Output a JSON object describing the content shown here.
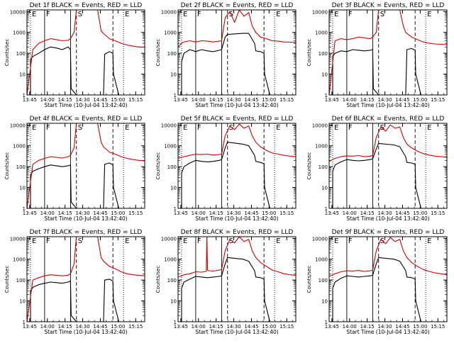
{
  "chart_data": {
    "type": "line",
    "panel_count": 9,
    "ylabel": "Counts/sec",
    "xlabel": "Start Time (10-Jul-04 13:42:40)",
    "x_tick_labels": [
      "13:45",
      "14:00",
      "14:15",
      "14:30",
      "14:45",
      "15:00",
      "15:15"
    ],
    "x_tick_minutes": [
      2.33,
      17.33,
      32.33,
      47.33,
      62.33,
      77.33,
      92.33
    ],
    "xlim_minutes": [
      0,
      100
    ],
    "y_scale": "log",
    "y_tick_labels": [
      "1",
      "10",
      "100",
      "1000",
      "10000"
    ],
    "ylim": [
      1,
      12000
    ],
    "legend_text": "BLACK = Events, RED = LLD",
    "colors": {
      "events": "#000000",
      "lld": "#d00000",
      "frame": "#000000"
    },
    "markers": [
      {
        "label": "E",
        "minute": 3,
        "style": "dotted"
      },
      {
        "label": "F",
        "minute": 15,
        "style": "solid"
      },
      {
        "label": "",
        "minute": 37,
        "style": "solid"
      },
      {
        "label": "S",
        "minute": 42,
        "style": "dashed"
      },
      {
        "label": "",
        "minute": 73,
        "style": "dashed"
      },
      {
        "label": "E",
        "minute": 82,
        "style": "dotted"
      }
    ],
    "panels": [
      {
        "title": "Det 1f BLACK = Events, RED = LLD",
        "series": [
          {
            "name": "Events",
            "x": [
              0,
              3,
              3,
              5,
              10,
              15,
              20,
              25,
              30,
              35,
              37,
              37.5,
              42,
              60,
              65,
              66,
              70,
              73,
              73.5,
              78,
              82
            ],
            "y": [
              1,
              1,
              50,
              70,
              100,
              150,
              200,
              180,
              150,
              200,
              150,
              2,
              1,
              1,
              1,
              90,
              120,
              100,
              10,
              1,
              1
            ]
          },
          {
            "name": "LLD",
            "x": [
              0,
              5,
              10,
              15,
              20,
              25,
              30,
              35,
              37,
              40,
              42,
              60,
              63,
              65,
              70,
              75,
              80,
              85,
              90,
              95,
              100
            ],
            "y": [
              1,
              150,
              300,
              400,
              500,
              450,
              400,
              420,
              500,
              1000,
              12000,
              12000,
              1200,
              900,
              500,
              400,
              300,
              250,
              220,
              200,
              200
            ]
          }
        ]
      },
      {
        "title": "Det 2f BLACK = Events, RED = LLD",
        "series": [
          {
            "name": "Events",
            "x": [
              0,
              3,
              3,
              5,
              10,
              15,
              20,
              25,
              30,
              35,
              37,
              40,
              42,
              55,
              60,
              65,
              66,
              70,
              73,
              73.5,
              78,
              82
            ],
            "y": [
              1,
              1,
              40,
              100,
              150,
              120,
              150,
              130,
              120,
              140,
              150,
              600,
              800,
              900,
              900,
              300,
              130,
              120,
              100,
              10,
              1,
              1
            ]
          },
          {
            "name": "LLD",
            "x": [
              0,
              3,
              5,
              10,
              15,
              20,
              25,
              30,
              35,
              37,
              40,
              44,
              48,
              52,
              56,
              60,
              63,
              66,
              70,
              75,
              80,
              85,
              90,
              95,
              100
            ],
            "y": [
              200,
              300,
              350,
              400,
              350,
              400,
              380,
              350,
              380,
              400,
              5000,
              10000,
              3000,
              12000,
              6000,
              9000,
              2000,
              1000,
              600,
              500,
              400,
              380,
              350,
              340,
              330
            ]
          }
        ]
      },
      {
        "title": "Det 3f BLACK = Events, RED = LLD",
        "series": [
          {
            "name": "Events",
            "x": [
              0,
              3,
              3,
              5,
              10,
              15,
              20,
              25,
              30,
              35,
              37,
              37.5,
              42,
              60,
              65,
              66,
              70,
              73,
              73.5,
              78,
              82
            ],
            "y": [
              1,
              1,
              70,
              100,
              130,
              120,
              150,
              140,
              130,
              140,
              150,
              2,
              1,
              1,
              1,
              150,
              170,
              140,
              10,
              1,
              1
            ]
          },
          {
            "name": "LLD",
            "x": [
              0,
              5,
              10,
              15,
              20,
              25,
              30,
              35,
              37,
              40,
              42,
              60,
              63,
              65,
              70,
              75,
              80,
              85,
              90,
              95,
              100
            ],
            "y": [
              1,
              400,
              500,
              450,
              500,
              600,
              550,
              500,
              600,
              1000,
              12000,
              12000,
              2000,
              1000,
              600,
              450,
              350,
              300,
              280,
              270,
              260
            ]
          }
        ]
      },
      {
        "title": "Det 4f BLACK = Events, RED = LLD",
        "series": [
          {
            "name": "Events",
            "x": [
              0,
              3,
              3,
              5,
              10,
              15,
              20,
              25,
              30,
              35,
              37,
              37.5,
              42,
              60,
              65,
              66,
              70,
              73,
              73.5,
              78,
              82
            ],
            "y": [
              1,
              1,
              40,
              60,
              80,
              100,
              120,
              110,
              100,
              110,
              120,
              2,
              1,
              1,
              1,
              130,
              150,
              120,
              10,
              1,
              1
            ]
          },
          {
            "name": "LLD",
            "x": [
              0,
              5,
              10,
              15,
              20,
              25,
              30,
              35,
              37,
              40,
              42,
              60,
              63,
              65,
              70,
              75,
              80,
              85,
              90,
              95,
              100
            ],
            "y": [
              1,
              130,
              200,
              250,
              300,
              280,
              260,
              300,
              350,
              800,
              12000,
              12000,
              1500,
              900,
              500,
              400,
              300,
              250,
              220,
              200,
              190
            ]
          }
        ]
      },
      {
        "title": "Det 5f BLACK = Events, RED = LLD",
        "series": [
          {
            "name": "Events",
            "x": [
              0,
              3,
              3,
              5,
              10,
              15,
              20,
              25,
              30,
              35,
              37,
              40,
              42,
              55,
              60,
              65,
              66,
              70,
              73,
              73.5,
              78,
              82
            ],
            "y": [
              1,
              1,
              50,
              100,
              150,
              200,
              180,
              170,
              180,
              200,
              220,
              800,
              1500,
              1200,
              1000,
              350,
              180,
              160,
              140,
              10,
              1,
              1
            ]
          },
          {
            "name": "LLD",
            "x": [
              0,
              3,
              5,
              10,
              15,
              20,
              25,
              30,
              35,
              37,
              40,
              44,
              48,
              52,
              56,
              60,
              63,
              66,
              70,
              75,
              80,
              85,
              90,
              95,
              100
            ],
            "y": [
              250,
              280,
              300,
              350,
              400,
              380,
              400,
              360,
              380,
              400,
              3000,
              9000,
              6000,
              11000,
              7000,
              9000,
              3000,
              1500,
              900,
              600,
              450,
              400,
              350,
              320,
              300
            ]
          }
        ]
      },
      {
        "title": "Det 6f BLACK = Events, RED = LLD",
        "series": [
          {
            "name": "Events",
            "x": [
              0,
              3,
              3,
              5,
              10,
              15,
              20,
              25,
              30,
              35,
              37,
              40,
              42,
              55,
              60,
              65,
              66,
              70,
              73,
              73.5,
              78,
              82
            ],
            "y": [
              1,
              1,
              60,
              120,
              170,
              220,
              200,
              190,
              200,
              220,
              240,
              700,
              1300,
              1100,
              900,
              300,
              160,
              150,
              130,
              10,
              1,
              1
            ]
          },
          {
            "name": "LLD",
            "x": [
              0,
              3,
              5,
              10,
              15,
              20,
              25,
              30,
              35,
              37,
              40,
              44,
              48,
              52,
              56,
              60,
              63,
              66,
              70,
              75,
              80,
              85,
              90,
              95,
              100
            ],
            "y": [
              180,
              220,
              250,
              300,
              330,
              320,
              340,
              300,
              320,
              350,
              2500,
              8000,
              5000,
              10000,
              7000,
              8000,
              2500,
              1200,
              800,
              550,
              420,
              360,
              320,
              300,
              280
            ]
          }
        ]
      },
      {
        "title": "Det 7f BLACK = Events, RED = LLD",
        "series": [
          {
            "name": "Events",
            "x": [
              0,
              3,
              3,
              5,
              10,
              15,
              20,
              25,
              30,
              35,
              37,
              37.5,
              42,
              60,
              65,
              66,
              70,
              73,
              73.5,
              78,
              82
            ],
            "y": [
              1,
              1,
              30,
              45,
              60,
              70,
              80,
              75,
              70,
              80,
              90,
              2,
              1,
              1,
              1,
              100,
              110,
              90,
              10,
              1,
              1
            ]
          },
          {
            "name": "LLD",
            "x": [
              0,
              5,
              10,
              15,
              20,
              25,
              30,
              35,
              37,
              40,
              42,
              60,
              63,
              65,
              70,
              75,
              80,
              85,
              90,
              95,
              100
            ],
            "y": [
              1,
              100,
              130,
              160,
              180,
              170,
              160,
              170,
              200,
              600,
              12000,
              12000,
              1200,
              800,
              450,
              350,
              250,
              200,
              180,
              170,
              160
            ]
          }
        ]
      },
      {
        "title": "Det 8f BLACK = Events, RED = LLD",
        "series": [
          {
            "name": "Events",
            "x": [
              0,
              3,
              3,
              5,
              10,
              15,
              20,
              25,
              30,
              35,
              37,
              40,
              42,
              55,
              60,
              65,
              66,
              70,
              73,
              73.5,
              78,
              82
            ],
            "y": [
              1,
              1,
              40,
              80,
              110,
              150,
              140,
              130,
              140,
              150,
              160,
              600,
              1200,
              1000,
              800,
              280,
              140,
              130,
              110,
              10,
              1,
              1
            ]
          },
          {
            "name": "LLD",
            "x": [
              0,
              3,
              5,
              10,
              15,
              20,
              24,
              24.5,
              25,
              26,
              30,
              35,
              37,
              40,
              44,
              48,
              52,
              56,
              60,
              63,
              66,
              70,
              75,
              80,
              85,
              90,
              95,
              100
            ],
            "y": [
              140,
              160,
              180,
              200,
              250,
              240,
              260,
              12000,
              300,
              280,
              270,
              300,
              320,
              2500,
              9000,
              6000,
              12000,
              7000,
              9000,
              2500,
              1200,
              700,
              450,
              300,
              250,
              200,
              180,
              170
            ]
          }
        ]
      },
      {
        "title": "Det 9f BLACK = Events, RED = LLD",
        "series": [
          {
            "name": "Events",
            "x": [
              0,
              3,
              3,
              5,
              10,
              15,
              20,
              25,
              30,
              35,
              37,
              40,
              42,
              55,
              60,
              65,
              66,
              70,
              73,
              73.5,
              78,
              82
            ],
            "y": [
              1,
              1,
              40,
              80,
              120,
              160,
              150,
              140,
              150,
              160,
              170,
              600,
              1200,
              1000,
              800,
              280,
              140,
              130,
              110,
              10,
              1,
              1
            ]
          },
          {
            "name": "LLD",
            "x": [
              0,
              3,
              5,
              10,
              15,
              20,
              25,
              30,
              35,
              37,
              40,
              44,
              48,
              52,
              56,
              60,
              63,
              66,
              70,
              75,
              80,
              85,
              90,
              95,
              100
            ],
            "y": [
              150,
              180,
              200,
              250,
              280,
              270,
              290,
              260,
              280,
              300,
              2500,
              9000,
              5500,
              11000,
              7000,
              9000,
              2500,
              1200,
              700,
              450,
              320,
              260,
              220,
              200,
              180
            ]
          }
        ]
      }
    ]
  }
}
